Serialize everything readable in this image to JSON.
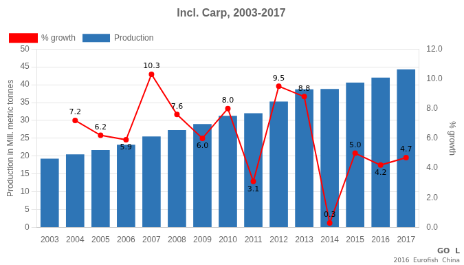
{
  "chart_data": {
    "type": "bar",
    "title": "Incl. Carp, 2003-2017",
    "categories": [
      "2003",
      "2004",
      "2005",
      "2006",
      "2007",
      "2008",
      "2009",
      "2010",
      "2011",
      "2012",
      "2013",
      "2014",
      "2015",
      "2016",
      "2017"
    ],
    "series": [
      {
        "name": "Production",
        "type": "bar",
        "color": "#2E75B6",
        "values": [
          19.3,
          20.5,
          21.7,
          23.2,
          25.5,
          27.3,
          29.0,
          31.3,
          32.0,
          35.3,
          38.7,
          38.8,
          40.6,
          42.0,
          44.3
        ]
      },
      {
        "name": "% growth",
        "type": "line",
        "axis": "y2",
        "color": "#FF0000",
        "marker": "circle",
        "values": [
          null,
          7.2,
          6.2,
          5.9,
          10.3,
          7.6,
          6.0,
          8.0,
          3.1,
          9.5,
          8.8,
          0.3,
          5.0,
          4.2,
          4.7
        ],
        "data_labels": true,
        "value_labels": [
          null,
          "7.2",
          "6.2",
          "5.9",
          "10.3",
          "7.6",
          "6.0",
          "8.0",
          "3.1",
          "9.5",
          "8.8",
          "0.3",
          "5.0",
          "4.2",
          "4.7"
        ]
      }
    ],
    "ylabel": "Production in Mill. metric tonnes",
    "y2label": "% growth",
    "ylim": [
      0,
      50
    ],
    "yticks": [
      0,
      5,
      10,
      15,
      20,
      25,
      30,
      35,
      40,
      45,
      50
    ],
    "y2lim": [
      0,
      12.0
    ],
    "y2ticks": [
      {
        "value": 0,
        "label": "0.0"
      },
      {
        "value": 2,
        "label": "2.0"
      },
      {
        "value": 4,
        "label": "4.0"
      },
      {
        "value": 6,
        "label": "6.0"
      },
      {
        "value": 8,
        "label": "8.0"
      },
      {
        "value": 10,
        "label": "10.0"
      },
      {
        "value": 12,
        "label": "12.0"
      }
    ],
    "grid": true,
    "legend": "upper left",
    "annotations": [
      "GO  L",
      "2016  Eurofish  China"
    ]
  }
}
